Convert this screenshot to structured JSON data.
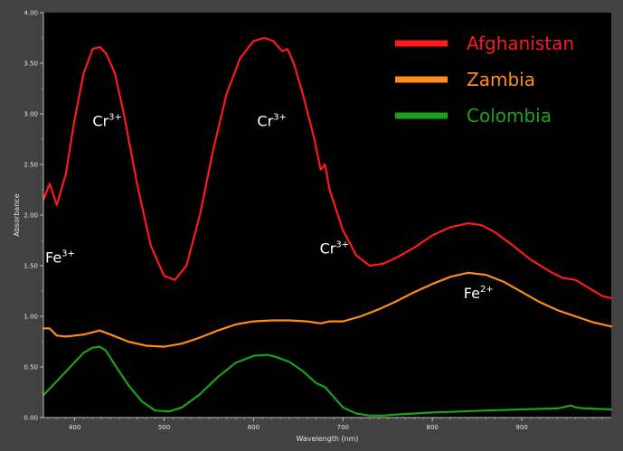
{
  "chart_data": {
    "type": "line",
    "xlabel": "Wavelength (nm)",
    "ylabel": "Absorbance",
    "xlim": [
      365,
      1000
    ],
    "ylim": [
      0,
      4.0
    ],
    "x_ticks": [
      "400",
      "500",
      "600",
      "700",
      "800",
      "900"
    ],
    "x_tick_values": [
      400,
      500,
      600,
      700,
      800,
      900
    ],
    "y_ticks": [
      "0.00",
      "0.50",
      "1.00",
      "1.50",
      "2.00",
      "2.50",
      "3.00",
      "3.50",
      "4.00"
    ],
    "y_tick_values": [
      0,
      0.5,
      1.0,
      1.5,
      2.0,
      2.5,
      3.0,
      3.5,
      4.0
    ],
    "grid": false,
    "legend_position": "top-right",
    "background_color": "#000000",
    "series": [
      {
        "name": "Afghanistan",
        "color": "#ff1a1a",
        "x": [
          365,
          372,
          380,
          390,
          400,
          410,
          420,
          428,
          435,
          445,
          455,
          470,
          485,
          500,
          512,
          525,
          540,
          555,
          570,
          585,
          600,
          612,
          622,
          632,
          638,
          645,
          655,
          668,
          675,
          680,
          685,
          700,
          715,
          730,
          745,
          760,
          780,
          800,
          820,
          840,
          855,
          870,
          890,
          910,
          930,
          945,
          960,
          975,
          990,
          1000
        ],
        "y": [
          2.15,
          2.31,
          2.1,
          2.4,
          2.95,
          3.4,
          3.64,
          3.66,
          3.6,
          3.4,
          3.0,
          2.3,
          1.7,
          1.4,
          1.36,
          1.5,
          2.0,
          2.65,
          3.2,
          3.55,
          3.72,
          3.75,
          3.72,
          3.62,
          3.64,
          3.5,
          3.2,
          2.75,
          2.45,
          2.5,
          2.25,
          1.85,
          1.6,
          1.5,
          1.52,
          1.58,
          1.68,
          1.8,
          1.88,
          1.92,
          1.9,
          1.83,
          1.7,
          1.56,
          1.45,
          1.38,
          1.36,
          1.28,
          1.2,
          1.18
        ]
      },
      {
        "name": "Zambia",
        "color": "#ff8c1a",
        "x": [
          365,
          372,
          380,
          390,
          410,
          428,
          440,
          460,
          480,
          500,
          520,
          540,
          560,
          580,
          600,
          620,
          640,
          660,
          675,
          685,
          700,
          720,
          740,
          760,
          780,
          800,
          820,
          840,
          860,
          880,
          900,
          920,
          940,
          960,
          980,
          1000
        ],
        "y": [
          0.88,
          0.88,
          0.81,
          0.8,
          0.82,
          0.86,
          0.82,
          0.75,
          0.71,
          0.7,
          0.73,
          0.79,
          0.86,
          0.92,
          0.95,
          0.96,
          0.96,
          0.95,
          0.93,
          0.95,
          0.95,
          1.0,
          1.07,
          1.15,
          1.24,
          1.32,
          1.39,
          1.43,
          1.41,
          1.34,
          1.24,
          1.14,
          1.06,
          1.0,
          0.94,
          0.9
        ]
      },
      {
        "name": "Colombia",
        "color": "#1aa31a",
        "x": [
          365,
          380,
          395,
          410,
          420,
          428,
          435,
          445,
          460,
          475,
          490,
          505,
          520,
          540,
          560,
          580,
          600,
          615,
          625,
          640,
          655,
          670,
          680,
          690,
          700,
          715,
          730,
          745,
          760,
          780,
          800,
          830,
          860,
          900,
          940,
          955,
          960,
          970,
          1000
        ],
        "y": [
          0.22,
          0.36,
          0.5,
          0.64,
          0.69,
          0.7,
          0.66,
          0.52,
          0.32,
          0.16,
          0.07,
          0.06,
          0.1,
          0.23,
          0.4,
          0.54,
          0.61,
          0.62,
          0.6,
          0.55,
          0.46,
          0.34,
          0.3,
          0.2,
          0.1,
          0.04,
          0.02,
          0.02,
          0.03,
          0.04,
          0.05,
          0.06,
          0.07,
          0.08,
          0.09,
          0.12,
          0.1,
          0.09,
          0.08
        ]
      }
    ],
    "annotations": [
      {
        "base": "Fe",
        "sup": "3+",
        "x": 365,
        "y": 1.53
      },
      {
        "base": "Cr",
        "sup": "3+",
        "x": 418,
        "y": 2.88
      },
      {
        "base": "Cr",
        "sup": "3+",
        "x": 602,
        "y": 2.88
      },
      {
        "base": "Cr",
        "sup": "3+",
        "x": 672,
        "y": 1.62
      },
      {
        "base": "Fe",
        "sup": "2+",
        "x": 833,
        "y": 1.18
      }
    ]
  }
}
